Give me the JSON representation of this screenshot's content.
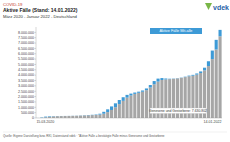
{
  "chart_data": {
    "type": "bar",
    "stacked": true,
    "grid": false,
    "legend": "top-right",
    "kicker": "COVID-19",
    "title": "Aktive Fälle (Stand: 14.01.2022)",
    "subtitle": "März 2020 - Januar 2022 - Deutschland",
    "logo": "vdek",
    "annotation": "Genesene und Gestorbene: 7.630.802",
    "footer": "Quelle: Eigene Darstellung bzw. RKI, Datenstand vdek · *Aktive Fälle = bestätigte Fälle minus Genesene und Gestorbene",
    "categories": [
      "15.03.2020",
      null,
      null,
      null,
      null,
      null,
      null,
      null,
      null,
      null,
      null,
      null,
      null,
      null,
      null,
      null,
      null,
      null,
      null,
      null,
      null,
      null,
      null,
      null,
      null,
      null,
      null,
      null,
      null,
      null,
      null,
      null,
      null,
      null,
      null,
      null,
      null,
      null,
      null,
      null,
      null,
      null,
      null,
      null,
      null,
      null,
      null,
      "14.01.2022"
    ],
    "series": [
      {
        "color": "#a6a6a6",
        "values": [
          0,
          10000,
          60000,
          110000,
          150000,
          170000,
          180000,
          185000,
          190000,
          200000,
          210000,
          225000,
          240000,
          255000,
          270000,
          290000,
          320000,
          400000,
          550000,
          750000,
          1000000,
          1300000,
          1600000,
          1900000,
          2100000,
          2250000,
          2350000,
          2450000,
          2600000,
          2850000,
          3150000,
          3400000,
          3550000,
          3600000,
          3630000,
          3660000,
          3700000,
          3750000,
          3820000,
          3900000,
          3950000,
          4050000,
          4200000,
          4450000,
          4850000,
          5500000,
          6400000,
          7630802
        ]
      },
      {
        "name": "Aktive Fälle Mit-alle",
        "color": "#3d9ad6",
        "values": [
          5000,
          40000,
          70000,
          50000,
          25000,
          12000,
          8000,
          7000,
          8000,
          10000,
          12000,
          15000,
          20000,
          25000,
          30000,
          40000,
          80000,
          180000,
          260000,
          330000,
          370000,
          380000,
          340000,
          260000,
          180000,
          130000,
          110000,
          120000,
          160000,
          230000,
          300000,
          280000,
          180000,
          90000,
          40000,
          25000,
          20000,
          25000,
          40000,
          60000,
          80000,
          110000,
          150000,
          250000,
          450000,
          800000,
          900000,
          600000
        ]
      }
    ],
    "ylim": [
      0,
      8500000
    ],
    "yticks": [
      0,
      {
        "value": 500000,
        "label": "500.000"
      },
      {
        "value": 1000000,
        "label": "1.000.000"
      },
      {
        "value": 1500000,
        "label": "1.500.000"
      },
      {
        "value": 2000000,
        "label": "2.000.000"
      },
      {
        "value": 2500000,
        "label": "2.500.000"
      },
      {
        "value": 3000000,
        "label": "3.000.000"
      },
      {
        "value": 3500000,
        "label": "3.500.000"
      },
      {
        "value": 4000000,
        "label": "4.000.000"
      },
      {
        "value": 4500000,
        "label": "4.500.000"
      },
      {
        "value": 5000000,
        "label": "5.000.000"
      },
      {
        "value": 5500000,
        "label": "5.500.000"
      },
      {
        "value": 6000000,
        "label": "6.000.000"
      },
      {
        "value": 6500000,
        "label": "6.500.000"
      },
      {
        "value": 7000000,
        "label": "7.000.000"
      },
      {
        "value": 7500000,
        "label": "7.500.000"
      },
      {
        "value": 8000000,
        "label": "8.000.000"
      }
    ]
  }
}
